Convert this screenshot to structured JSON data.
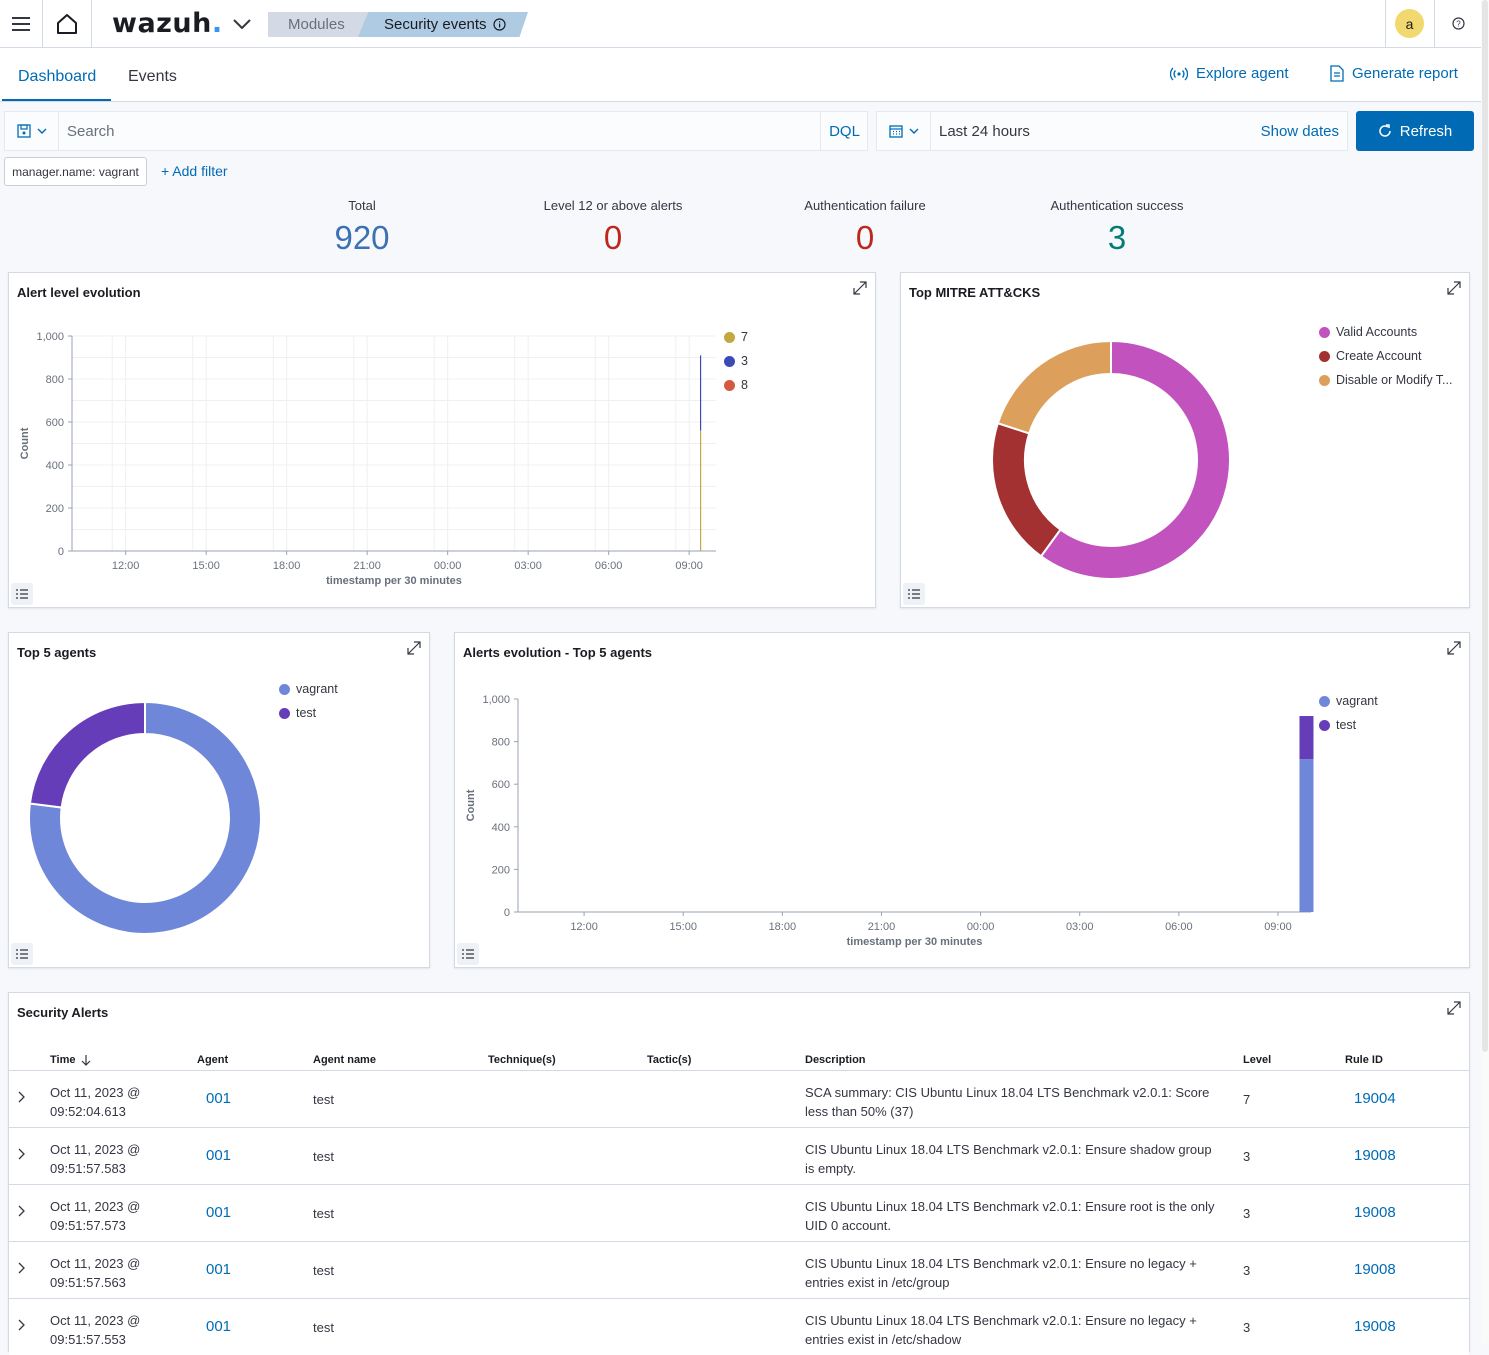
{
  "topbar": {
    "brand": "wazuh",
    "brand_dot": ".",
    "breadcrumb_modules": "Modules",
    "breadcrumb_current": "Security events",
    "user_initial": "a"
  },
  "tabs": [
    {
      "label": "Dashboard",
      "active": true
    },
    {
      "label": "Events",
      "active": false
    }
  ],
  "header_actions": {
    "explore_agent": "Explore agent",
    "generate_report": "Generate report"
  },
  "query_bar": {
    "placeholder": "Search",
    "language": "DQL",
    "time_range": "Last 24 hours",
    "show_dates": "Show dates",
    "refresh": "Refresh"
  },
  "filters": {
    "pills": [
      "manager.name: vagrant"
    ],
    "add_filter": "+ Add filter"
  },
  "metrics": [
    {
      "label": "Total",
      "value": "920",
      "color": "#3c71b4"
    },
    {
      "label": "Level 12 or above alerts",
      "value": "0",
      "color": "#bd271e"
    },
    {
      "label": "Authentication failure",
      "value": "0",
      "color": "#bd271e"
    },
    {
      "label": "Authentication success",
      "value": "3",
      "color": "#017d73"
    }
  ],
  "alert_level_panel": {
    "title": "Alert level evolution",
    "legend": [
      {
        "name": "7",
        "color": "#c2a83f"
      },
      {
        "name": "3",
        "color": "#3c4ab5"
      },
      {
        "name": "8",
        "color": "#d35a41"
      }
    ]
  },
  "mitre_panel": {
    "title": "Top MITRE ATT&CKS",
    "legend": [
      {
        "name": "Valid Accounts",
        "color": "#c152be"
      },
      {
        "name": "Create Account",
        "color": "#a33131"
      },
      {
        "name": "Disable or Modify T...",
        "color": "#dca05c"
      }
    ]
  },
  "top_agents_panel": {
    "title": "Top 5 agents",
    "legend": [
      {
        "name": "vagrant",
        "color": "#6f87d8"
      },
      {
        "name": "test",
        "color": "#663db8"
      }
    ]
  },
  "alerts_evolution_panel": {
    "title": "Alerts evolution - Top 5 agents",
    "legend": [
      {
        "name": "vagrant",
        "color": "#6f87d8"
      },
      {
        "name": "test",
        "color": "#663db8"
      }
    ]
  },
  "chart_data": [
    {
      "type": "line",
      "title": "Alert level evolution",
      "xlabel": "timestamp per 30 minutes",
      "ylabel": "Count",
      "ylim": [
        0,
        1000
      ],
      "y_ticks": [
        "0",
        "200",
        "400",
        "600",
        "800",
        "1,000"
      ],
      "x_ticks": [
        "12:00",
        "15:00",
        "18:00",
        "21:00",
        "00:00",
        "03:00",
        "06:00",
        "09:00"
      ],
      "x_range": [
        "10:00",
        "10:00"
      ],
      "series": [
        {
          "name": "7",
          "x": [
            "09:30"
          ],
          "values": [
            0
          ]
        },
        {
          "name": "3",
          "x": [
            "09:30"
          ],
          "values": [
            910
          ]
        },
        {
          "name": "8",
          "x": [
            "09:30"
          ],
          "values": [
            0
          ]
        }
      ],
      "legend": "right",
      "grid": true
    },
    {
      "type": "pie",
      "title": "Top MITRE ATT&CKS",
      "labels": [
        "Valid Accounts",
        "Create Account",
        "Disable or Modify T..."
      ],
      "values": [
        60,
        20,
        20
      ],
      "donut": true,
      "legend": "right"
    },
    {
      "type": "pie",
      "title": "Top 5 agents",
      "labels": [
        "vagrant",
        "test"
      ],
      "values": [
        77,
        23
      ],
      "donut": true,
      "legend": "right"
    },
    {
      "type": "bar",
      "stacked": true,
      "title": "Alerts evolution - Top 5 agents",
      "xlabel": "timestamp per 30 minutes",
      "ylabel": "Count",
      "ylim": [
        0,
        1000
      ],
      "y_ticks": [
        "0",
        "200",
        "400",
        "600",
        "800",
        "1,000"
      ],
      "x_ticks": [
        "12:00",
        "15:00",
        "18:00",
        "21:00",
        "00:00",
        "03:00",
        "06:00",
        "09:00"
      ],
      "categories": [
        "09:30"
      ],
      "series": [
        {
          "name": "vagrant",
          "values": [
            718
          ]
        },
        {
          "name": "test",
          "values": [
            202
          ]
        }
      ],
      "legend": "right",
      "grid": false
    }
  ],
  "security_alerts": {
    "title": "Security Alerts",
    "columns": [
      "Time",
      "Agent",
      "Agent name",
      "Technique(s)",
      "Tactic(s)",
      "Description",
      "Level",
      "Rule ID"
    ],
    "rows": [
      {
        "date": "Oct 11, 2023 @",
        "time": "09:52:04.613",
        "agent": "001",
        "agent_name": "test",
        "desc1": "SCA summary: CIS Ubuntu Linux 18.04 LTS Benchmark v2.0.1: Score",
        "desc2": "less than 50% (37)",
        "level": "7",
        "rule_id": "19004"
      },
      {
        "date": "Oct 11, 2023 @",
        "time": "09:51:57.583",
        "agent": "001",
        "agent_name": "test",
        "desc1": "CIS Ubuntu Linux 18.04 LTS Benchmark v2.0.1: Ensure shadow group",
        "desc2": "is empty.",
        "level": "3",
        "rule_id": "19008"
      },
      {
        "date": "Oct 11, 2023 @",
        "time": "09:51:57.573",
        "agent": "001",
        "agent_name": "test",
        "desc1": "CIS Ubuntu Linux 18.04 LTS Benchmark v2.0.1: Ensure root is the only",
        "desc2": "UID 0 account.",
        "level": "3",
        "rule_id": "19008"
      },
      {
        "date": "Oct 11, 2023 @",
        "time": "09:51:57.563",
        "agent": "001",
        "agent_name": "test",
        "desc1": "CIS Ubuntu Linux 18.04 LTS Benchmark v2.0.1: Ensure no legacy +",
        "desc2": "entries exist in /etc/group",
        "level": "3",
        "rule_id": "19008"
      },
      {
        "date": "Oct 11, 2023 @",
        "time": "09:51:57.553",
        "agent": "001",
        "agent_name": "test",
        "desc1": "CIS Ubuntu Linux 18.04 LTS Benchmark v2.0.1: Ensure no legacy +",
        "desc2": "entries exist in /etc/shadow",
        "level": "3",
        "rule_id": "19008"
      }
    ]
  }
}
